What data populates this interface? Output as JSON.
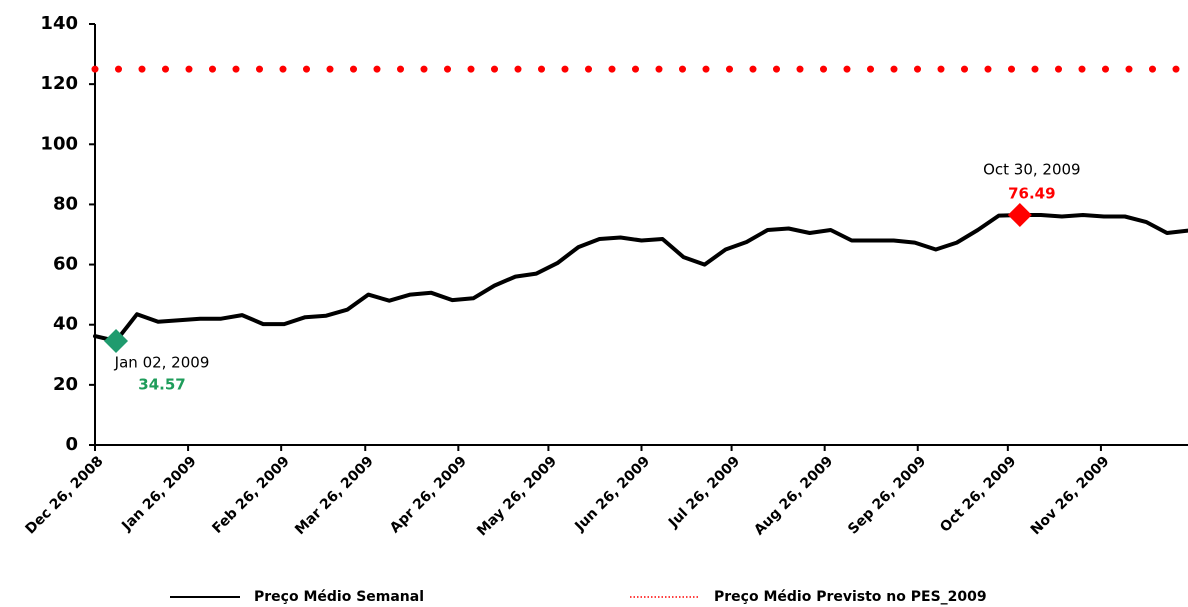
{
  "chart_data": {
    "type": "line",
    "xlim": [
      "2008-12-26",
      "2009-12-25"
    ],
    "xticks": [
      {
        "value": "2008-12-26",
        "label": "Dec 26, 2008"
      },
      {
        "value": "2009-01-26",
        "label": "Jan 26, 2009"
      },
      {
        "value": "2009-02-26",
        "label": "Feb 26, 2009"
      },
      {
        "value": "2009-03-26",
        "label": "Mar 26, 2009"
      },
      {
        "value": "2009-04-26",
        "label": "Apr 26, 2009"
      },
      {
        "value": "2009-05-26",
        "label": "May 26, 2009"
      },
      {
        "value": "2009-06-26",
        "label": "Jun 26, 2009"
      },
      {
        "value": "2009-07-26",
        "label": "Jul 26, 2009"
      },
      {
        "value": "2009-08-26",
        "label": "Aug 26, 2009"
      },
      {
        "value": "2009-09-26",
        "label": "Sep 26, 2009"
      },
      {
        "value": "2009-10-26",
        "label": "Oct 26, 2009"
      },
      {
        "value": "2009-11-26",
        "label": "Nov 26, 2009"
      }
    ],
    "ylim": [
      0,
      140
    ],
    "yticks": [
      0,
      20,
      40,
      60,
      80,
      100,
      120,
      140
    ],
    "legend": "bottom",
    "series": [
      {
        "name": "Preço Médio Semanal",
        "color": "#000000",
        "x": [
          "2008-12-26",
          "2009-01-02",
          "2009-01-09",
          "2009-01-16",
          "2009-01-23",
          "2009-01-30",
          "2009-02-06",
          "2009-02-13",
          "2009-02-20",
          "2009-02-27",
          "2009-03-06",
          "2009-03-13",
          "2009-03-20",
          "2009-03-27",
          "2009-04-03",
          "2009-04-10",
          "2009-04-17",
          "2009-04-24",
          "2009-05-01",
          "2009-05-08",
          "2009-05-15",
          "2009-05-22",
          "2009-05-29",
          "2009-06-05",
          "2009-06-12",
          "2009-06-19",
          "2009-06-26",
          "2009-07-03",
          "2009-07-10",
          "2009-07-17",
          "2009-07-24",
          "2009-07-31",
          "2009-08-07",
          "2009-08-14",
          "2009-08-21",
          "2009-08-28",
          "2009-09-04",
          "2009-09-11",
          "2009-09-18",
          "2009-09-25",
          "2009-10-02",
          "2009-10-09",
          "2009-10-16",
          "2009-10-23",
          "2009-10-30",
          "2009-11-06",
          "2009-11-13",
          "2009-11-20",
          "2009-11-27",
          "2009-12-04",
          "2009-12-11",
          "2009-12-18",
          "2009-12-25"
        ],
        "values": [
          36.2,
          34.57,
          43.5,
          41,
          41.5,
          42,
          42,
          43.2,
          40.2,
          40.2,
          42.5,
          43,
          45,
          50,
          48,
          50,
          50.6,
          48.2,
          48.8,
          53,
          56,
          57,
          60.5,
          65.8,
          68.5,
          69,
          68,
          68.5,
          62.5,
          60,
          65,
          67.5,
          71.5,
          72,
          70.5,
          71.5,
          68,
          68,
          68,
          67.3,
          65,
          67.3,
          71.5,
          76.3,
          76.49,
          76.5,
          76,
          76.5,
          76,
          76,
          74.2,
          70.5,
          71.3
        ]
      },
      {
        "name": "Preço Médio Previsto no PES_2009",
        "color": "#ff0000",
        "dotted": true,
        "x": [
          "2008-12-26",
          "2009-12-25"
        ],
        "values": [
          125,
          125
        ]
      }
    ],
    "annotations": [
      {
        "text": "Jan 02, 2009",
        "x": "2009-01-02",
        "value": 34.57,
        "color": "#1e9c5a",
        "marker_color": "#1f9b6e"
      },
      {
        "text": "Oct 30, 2009",
        "x": "2009-10-30",
        "value": 76.49,
        "color": "#ff0000",
        "marker_color": "#ff0000"
      }
    ]
  }
}
